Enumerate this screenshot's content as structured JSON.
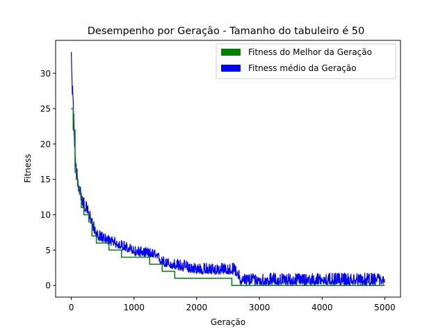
{
  "chart_data": {
    "type": "line",
    "title": "Desempenho por Geração - Tamanho do tabuleiro é 50",
    "xlabel": "Geração",
    "ylabel": "Fitness",
    "xlim": [
      -250,
      5250
    ],
    "ylim": [
      -1.65,
      34.65
    ],
    "xticks": [
      0,
      1000,
      2000,
      3000,
      4000,
      5000
    ],
    "yticks": [
      0,
      5,
      10,
      15,
      20,
      25,
      30
    ],
    "grid": false,
    "legend_position": "top-right",
    "series": [
      {
        "name": "Fitness do Melhor da Geração",
        "color": "#008000",
        "step": true,
        "x": [
          0,
          30,
          60,
          80,
          100,
          130,
          160,
          200,
          280,
          330,
          400,
          600,
          800,
          1000,
          1250,
          1450,
          1650,
          2000,
          2300,
          2560,
          2700,
          3200,
          4000,
          5000
        ],
        "values": [
          25,
          22,
          16,
          15,
          14,
          13,
          11,
          10,
          9,
          7,
          6,
          5,
          4,
          4,
          3,
          2,
          1,
          1,
          1,
          0,
          0,
          0,
          0,
          0
        ]
      },
      {
        "name": "Fitness médio da Geração",
        "color": "#0000ff",
        "noisy": true,
        "x": [
          0,
          10,
          20,
          30,
          50,
          80,
          120,
          180,
          250,
          320,
          400,
          600,
          800,
          1000,
          1300,
          1500,
          1700,
          2000,
          2300,
          2600,
          2650,
          2700,
          2800,
          3000,
          3500,
          4000,
          4500,
          5000
        ],
        "values": [
          33,
          28,
          27,
          26,
          20,
          16,
          13.5,
          11.5,
          10.5,
          9,
          7,
          6.2,
          5.5,
          4.7,
          4.3,
          3,
          2.6,
          2.1,
          2,
          2,
          1.6,
          0.5,
          0.6,
          0.6,
          0.6,
          0.6,
          0.6,
          0.6
        ],
        "noise_upper": [
          0,
          1.5,
          1.5,
          1.5,
          1.5,
          1.5,
          1.5,
          1.5,
          1.2,
          1.2,
          1,
          1,
          1,
          1,
          1,
          1,
          1.2,
          1.2,
          1.2,
          1.2,
          1.2,
          1.2,
          1.2,
          1.2,
          1.2,
          1.2,
          1.2,
          1.2
        ],
        "noise_lower": [
          0,
          0.5,
          0.5,
          0.5,
          0.5,
          0.5,
          0.5,
          0.5,
          0.5,
          0.5,
          0.5,
          0.5,
          0.5,
          0.5,
          0.5,
          0.5,
          0.5,
          0.5,
          0.5,
          0.5,
          0.5,
          0.5,
          0.6,
          0.6,
          0.6,
          0.6,
          0.6,
          0.6
        ]
      }
    ]
  }
}
